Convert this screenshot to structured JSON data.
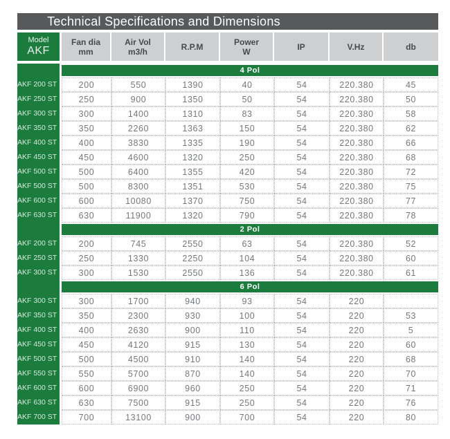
{
  "title": "Technical Specifications and Dimensions",
  "colors": {
    "green": "#1B7C3E",
    "title_bar_bg": "#58595B",
    "header_bg": "#CDCFD1",
    "data_text": "#76777A",
    "model_label_text": "#D6EADC"
  },
  "header": {
    "model": {
      "line1": "Model",
      "line2": "AKF"
    },
    "columns": [
      {
        "line1": "Fan dia",
        "line2": "mm"
      },
      {
        "line1": "Air Vol",
        "line2": "m3/h"
      },
      {
        "line1": "R.P.M",
        "line2": ""
      },
      {
        "line1": "Power",
        "line2": "W"
      },
      {
        "line1": "IP",
        "line2": ""
      },
      {
        "line1": "V.Hz",
        "line2": ""
      },
      {
        "line1": "db",
        "line2": ""
      }
    ]
  },
  "sections": [
    {
      "label": "4 Pol",
      "rows": [
        {
          "model": "AKF 200 ST",
          "values": [
            "200",
            "550",
            "1390",
            "40",
            "54",
            "220.380",
            "45"
          ]
        },
        {
          "model": "AKF 250 ST",
          "values": [
            "250",
            "900",
            "1350",
            "50",
            "54",
            "220.380",
            "50"
          ]
        },
        {
          "model": "AKF 300 ST",
          "values": [
            "300",
            "1400",
            "1310",
            "83",
            "54",
            "220.380",
            "58"
          ]
        },
        {
          "model": "AKF 350 ST",
          "values": [
            "350",
            "2260",
            "1363",
            "150",
            "54",
            "220.380",
            "62"
          ]
        },
        {
          "model": "AKF 400 ST",
          "values": [
            "400",
            "3830",
            "1335",
            "190",
            "54",
            "220.380",
            "66"
          ]
        },
        {
          "model": "AKF 450 ST",
          "values": [
            "450",
            "4600",
            "1320",
            "250",
            "54",
            "220.380",
            "68"
          ]
        },
        {
          "model": "AKF 500 ST",
          "values": [
            "500",
            "6400",
            "1355",
            "420",
            "54",
            "220.380",
            "72"
          ]
        },
        {
          "model": "AKF 500 ST",
          "values": [
            "500",
            "8300",
            "1351",
            "530",
            "54",
            "220.380",
            "75"
          ]
        },
        {
          "model": "AKF 600 ST",
          "values": [
            "600",
            "10080",
            "1370",
            "750",
            "54",
            "220.380",
            "77"
          ]
        },
        {
          "model": "AKF 630 ST",
          "values": [
            "630",
            "11900",
            "1320",
            "790",
            "54",
            "220.380",
            "78"
          ]
        }
      ]
    },
    {
      "label": "2 Pol",
      "rows": [
        {
          "model": "AKF 200 ST",
          "values": [
            "200",
            "745",
            "2550",
            "63",
            "54",
            "220.380",
            "52"
          ]
        },
        {
          "model": "AKF 250 ST",
          "values": [
            "250",
            "1330",
            "2250",
            "104",
            "54",
            "220.380",
            "60"
          ]
        },
        {
          "model": "AKF 300 ST",
          "values": [
            "300",
            "1530",
            "2550",
            "136",
            "54",
            "220.380",
            "61"
          ]
        }
      ]
    },
    {
      "label": "6 Pol",
      "rows": [
        {
          "model": "AKF 300 ST",
          "values": [
            "300",
            "1700",
            "940",
            "93",
            "54",
            "220",
            ""
          ]
        },
        {
          "model": "AKF 350 ST",
          "values": [
            "350",
            "2300",
            "930",
            "100",
            "54",
            "220",
            "53"
          ]
        },
        {
          "model": "AKF 400 ST",
          "values": [
            "400",
            "2630",
            "900",
            "110",
            "54",
            "220",
            "5"
          ]
        },
        {
          "model": "AKF 450 ST",
          "values": [
            "450",
            "4120",
            "915",
            "130",
            "54",
            "220",
            "60"
          ]
        },
        {
          "model": "AKF 500 ST",
          "values": [
            "500",
            "4500",
            "910",
            "140",
            "54",
            "220",
            "68"
          ]
        },
        {
          "model": "AKF 550 ST",
          "values": [
            "550",
            "5700",
            "870",
            "140",
            "54",
            "220",
            "70"
          ]
        },
        {
          "model": "AKF 600 ST",
          "values": [
            "600",
            "6900",
            "960",
            "250",
            "54",
            "220",
            "71"
          ]
        },
        {
          "model": "AKF 630 ST",
          "values": [
            "630",
            "7500",
            "915",
            "250",
            "54",
            "220",
            "76"
          ]
        },
        {
          "model": "AKF 700 ST",
          "values": [
            "700",
            "13100",
            "900",
            "700",
            "54",
            "220",
            "80"
          ]
        }
      ]
    }
  ]
}
